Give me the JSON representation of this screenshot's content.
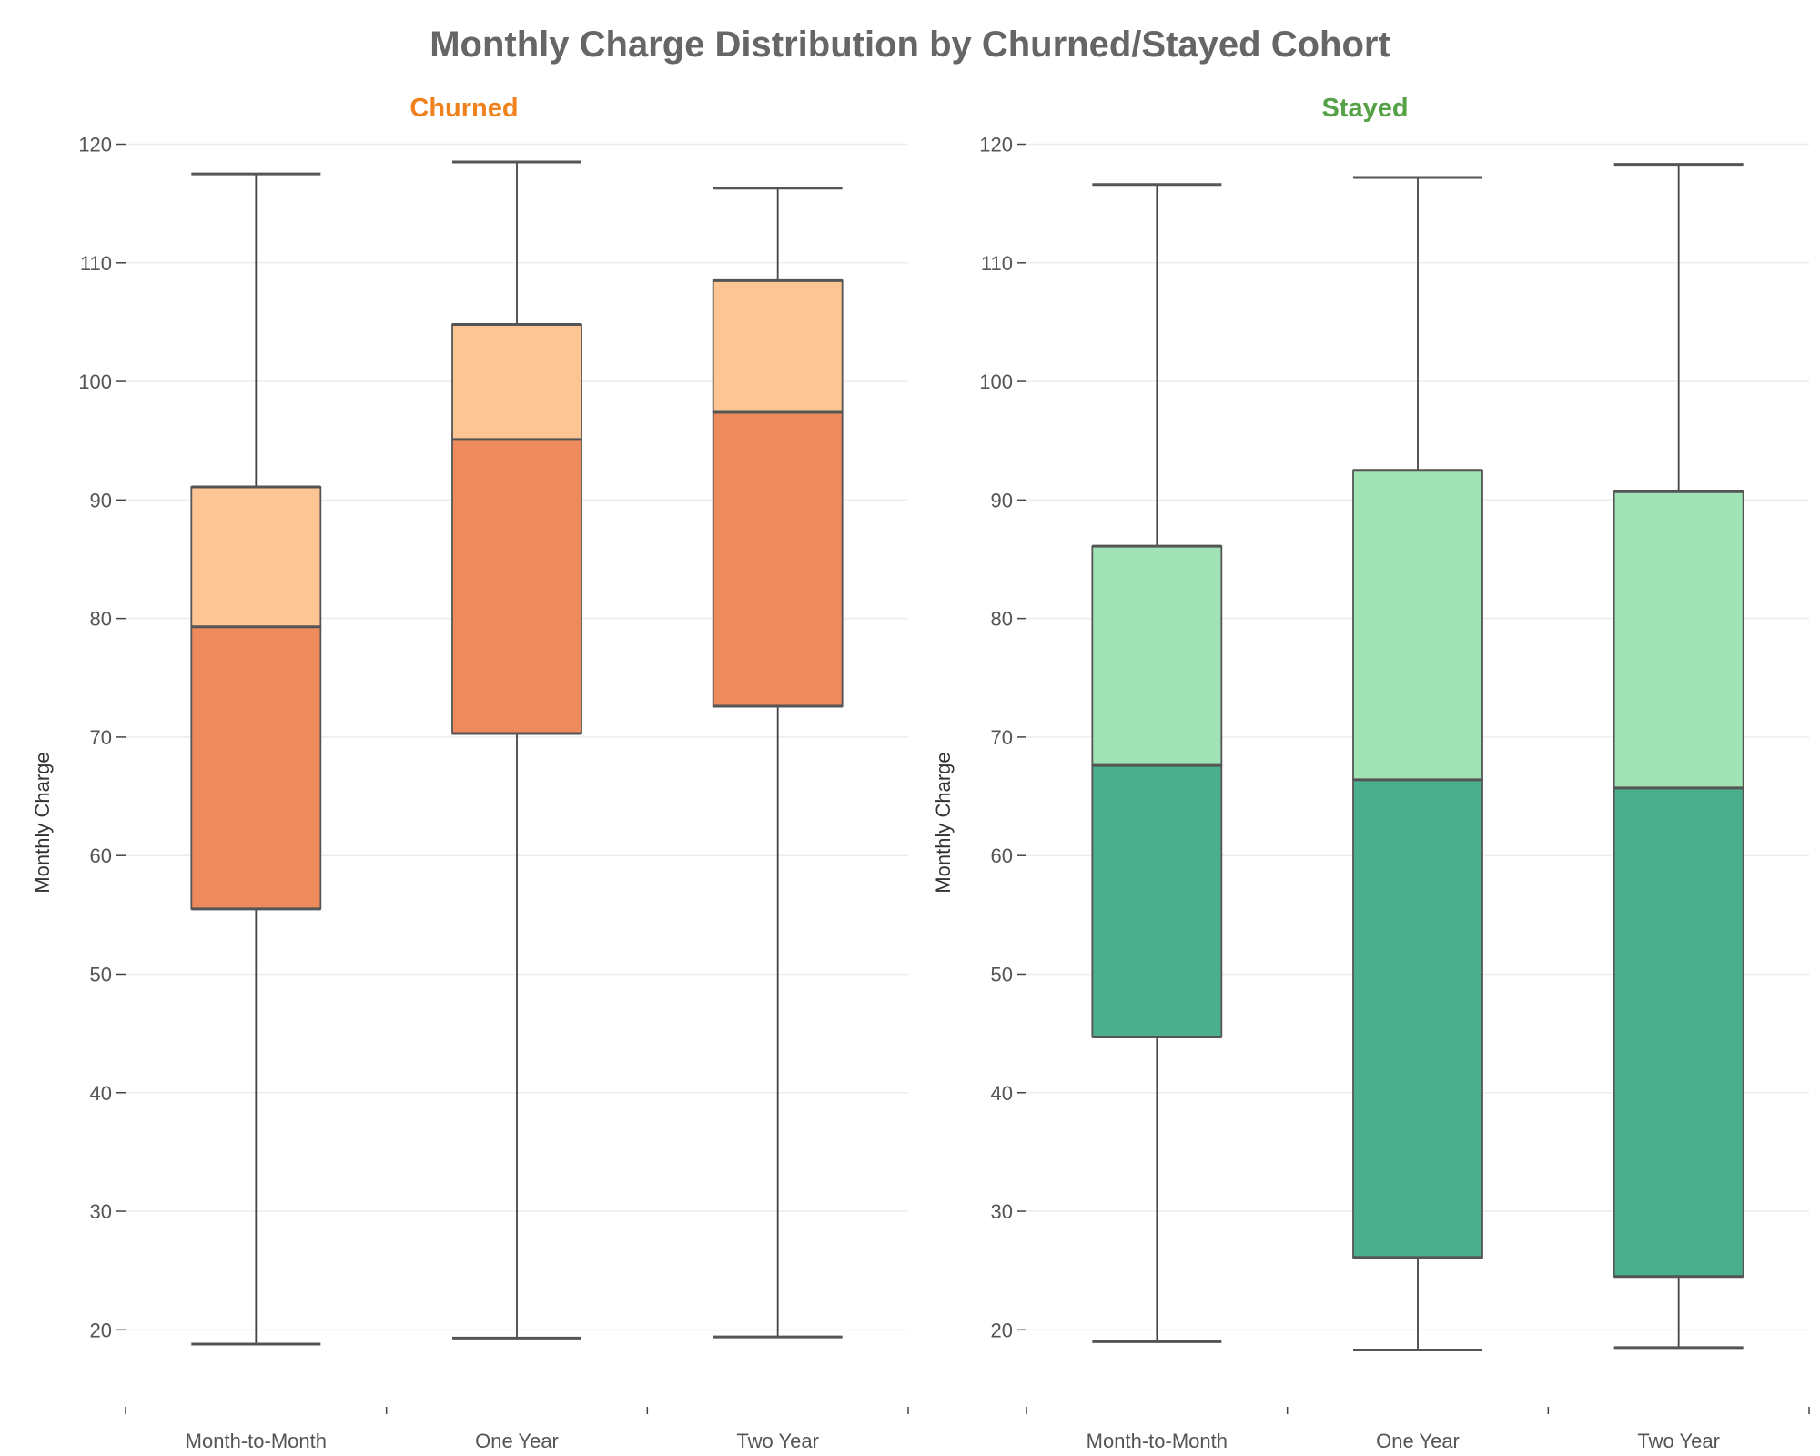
{
  "chart_data": {
    "type": "box",
    "title": "Monthly Charge Distribution by Churned/Stayed Cohort",
    "categories": [
      "Month-to-Month",
      "One Year",
      "Two Year"
    ],
    "ylabel": "Monthly Charge",
    "ylim": [
      13.5,
      120.5
    ],
    "yticks": [
      20,
      30,
      40,
      50,
      60,
      70,
      80,
      90,
      100,
      110,
      120
    ],
    "grid": true,
    "panels": [
      {
        "name": "Churned",
        "title_color": "#F0821E",
        "color_lower": "#EE8B5D",
        "color_upper": "#FDC593",
        "boxes": [
          {
            "category": "Month-to-Month",
            "min": 18.8,
            "q1": 55.5,
            "median": 79.3,
            "q3": 91.1,
            "max": 117.5
          },
          {
            "category": "One Year",
            "min": 19.3,
            "q1": 70.3,
            "median": 95.1,
            "q3": 104.8,
            "max": 118.5
          },
          {
            "category": "Two Year",
            "min": 19.4,
            "q1": 72.6,
            "median": 97.4,
            "q3": 108.5,
            "max": 116.3
          }
        ]
      },
      {
        "name": "Stayed",
        "title_color": "#55A146",
        "color_lower": "#4AAF8C",
        "color_upper": "#A0E4B6",
        "boxes": [
          {
            "category": "Month-to-Month",
            "min": 19.0,
            "q1": 44.7,
            "median": 67.6,
            "q3": 86.1,
            "max": 116.6
          },
          {
            "category": "One Year",
            "min": 18.3,
            "q1": 26.1,
            "median": 66.4,
            "q3": 92.5,
            "max": 117.2
          },
          {
            "category": "Two Year",
            "min": 18.5,
            "q1": 24.5,
            "median": 65.7,
            "q3": 90.7,
            "max": 118.3
          }
        ]
      }
    ]
  }
}
